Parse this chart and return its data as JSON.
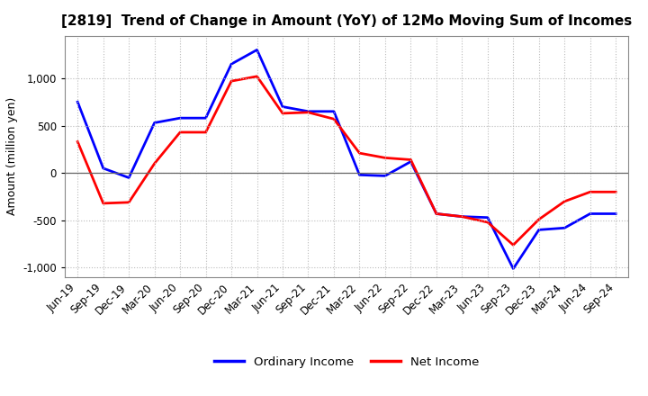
{
  "title": "[2819]  Trend of Change in Amount (YoY) of 12Mo Moving Sum of Incomes",
  "ylabel": "Amount (million yen)",
  "x_labels": [
    "Jun-19",
    "Sep-19",
    "Dec-19",
    "Mar-20",
    "Jun-20",
    "Sep-20",
    "Dec-20",
    "Mar-21",
    "Jun-21",
    "Sep-21",
    "Dec-21",
    "Mar-22",
    "Jun-22",
    "Sep-22",
    "Dec-22",
    "Mar-23",
    "Jun-23",
    "Sep-23",
    "Dec-23",
    "Mar-24",
    "Jun-24",
    "Sep-24"
  ],
  "ordinary_income": [
    750,
    50,
    -50,
    530,
    580,
    580,
    1150,
    1300,
    700,
    650,
    650,
    -20,
    -30,
    120,
    -430,
    -460,
    -470,
    -1010,
    -600,
    -580,
    -430,
    -430
  ],
  "net_income": [
    330,
    -320,
    -310,
    100,
    430,
    430,
    970,
    1020,
    630,
    640,
    570,
    210,
    160,
    140,
    -430,
    -460,
    -520,
    -760,
    -490,
    -300,
    -200,
    -200
  ],
  "ordinary_income_color": "#0000FF",
  "net_income_color": "#FF0000",
  "ylim": [
    -1100,
    1450
  ],
  "yticks": [
    -1000,
    -500,
    0,
    500,
    1000
  ],
  "background_color": "#ffffff",
  "grid_color": "#bbbbbb",
  "legend_labels": [
    "Ordinary Income",
    "Net Income"
  ],
  "title_fontsize": 11,
  "axis_label_fontsize": 9,
  "tick_fontsize": 8.5
}
